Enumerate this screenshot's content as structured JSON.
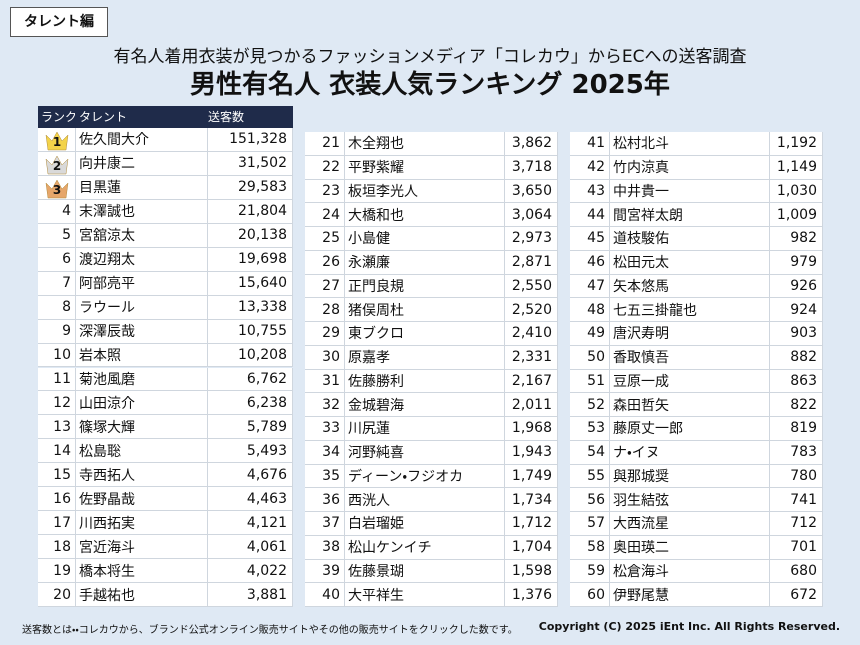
{
  "tag": "タレント編",
  "subtitle": "有名人着用衣装が見つかるファッションメディア「コレカウ」からECへの送客調査",
  "title": "男性有名人 衣装人気ランキング 2025年",
  "table": {
    "headers": [
      "ランク",
      "タレント",
      "送客数"
    ],
    "rows": [
      [
        1,
        "佐久間大介",
        "151,328"
      ],
      [
        2,
        "向井康二",
        "31,502"
      ],
      [
        3,
        "目黒蓮",
        "29,583"
      ],
      [
        4,
        "末澤誠也",
        "21,804"
      ],
      [
        5,
        "宮舘涼太",
        "20,138"
      ],
      [
        6,
        "渡辺翔太",
        "19,698"
      ],
      [
        7,
        "阿部亮平",
        "15,640"
      ],
      [
        8,
        "ラウール",
        "13,338"
      ],
      [
        9,
        "深澤辰哉",
        "10,755"
      ],
      [
        10,
        "岩本照",
        "10,208"
      ],
      [
        11,
        "菊池風磨",
        "6,762"
      ],
      [
        12,
        "山田涼介",
        "6,238"
      ],
      [
        13,
        "篠塚大輝",
        "5,789"
      ],
      [
        14,
        "松島聡",
        "5,493"
      ],
      [
        15,
        "寺西拓人",
        "4,676"
      ],
      [
        16,
        "佐野晶哉",
        "4,463"
      ],
      [
        17,
        "川西拓実",
        "4,121"
      ],
      [
        18,
        "宮近海斗",
        "4,061"
      ],
      [
        19,
        "橋本将生",
        "4,022"
      ],
      [
        20,
        "手越祐也",
        "3,881"
      ],
      [
        21,
        "木全翔也",
        "3,862"
      ],
      [
        22,
        "平野紫耀",
        "3,718"
      ],
      [
        23,
        "板垣李光人",
        "3,650"
      ],
      [
        24,
        "大橋和也",
        "3,064"
      ],
      [
        25,
        "小島健",
        "2,973"
      ],
      [
        26,
        "永瀬廉",
        "2,871"
      ],
      [
        27,
        "正門良規",
        "2,550"
      ],
      [
        28,
        "猪俣周杜",
        "2,520"
      ],
      [
        29,
        "東ブクロ",
        "2,410"
      ],
      [
        30,
        "原嘉孝",
        "2,331"
      ],
      [
        31,
        "佐藤勝利",
        "2,167"
      ],
      [
        32,
        "金城碧海",
        "2,011"
      ],
      [
        33,
        "川尻蓮",
        "1,968"
      ],
      [
        34,
        "河野純喜",
        "1,943"
      ],
      [
        35,
        "ディーン・フジオカ",
        "1,749"
      ],
      [
        36,
        "西洸人",
        "1,734"
      ],
      [
        37,
        "白岩瑠姫",
        "1,712"
      ],
      [
        38,
        "松山ケンイチ",
        "1,704"
      ],
      [
        39,
        "佐藤景瑚",
        "1,598"
      ],
      [
        40,
        "大平祥生",
        "1,376"
      ],
      [
        41,
        "松村北斗",
        "1,192"
      ],
      [
        42,
        "竹内涼真",
        "1,149"
      ],
      [
        43,
        "中井貴一",
        "1,030"
      ],
      [
        44,
        "間宮祥太朗",
        "1,009"
      ],
      [
        45,
        "道枝駿佑",
        "982"
      ],
      [
        46,
        "松田元太",
        "979"
      ],
      [
        47,
        "矢本悠馬",
        "926"
      ],
      [
        48,
        "七五三掛龍也",
        "924"
      ],
      [
        49,
        "唐沢寿明",
        "903"
      ],
      [
        50,
        "香取慎吾",
        "882"
      ],
      [
        51,
        "豆原一成",
        "863"
      ],
      [
        52,
        "森田哲矢",
        "822"
      ],
      [
        53,
        "藤原丈一郎",
        "819"
      ],
      [
        54,
        "ナ・イヌ",
        "783"
      ],
      [
        55,
        "與那城奨",
        "780"
      ],
      [
        56,
        "羽生結弦",
        "741"
      ],
      [
        57,
        "大西流星",
        "712"
      ],
      [
        58,
        "奥田瑛二",
        "701"
      ],
      [
        59,
        "松倉海斗",
        "680"
      ],
      [
        60,
        "伊野尾慧",
        "672"
      ]
    ]
  },
  "footer": {
    "note": "送客数とは・・コレカウから、ブランド公式オンライン販売サイトやその他の販売サイトをクリックした数です。",
    "copyright": "Copyright (C) 2025 iEnt Inc. All Rights Reserved."
  }
}
